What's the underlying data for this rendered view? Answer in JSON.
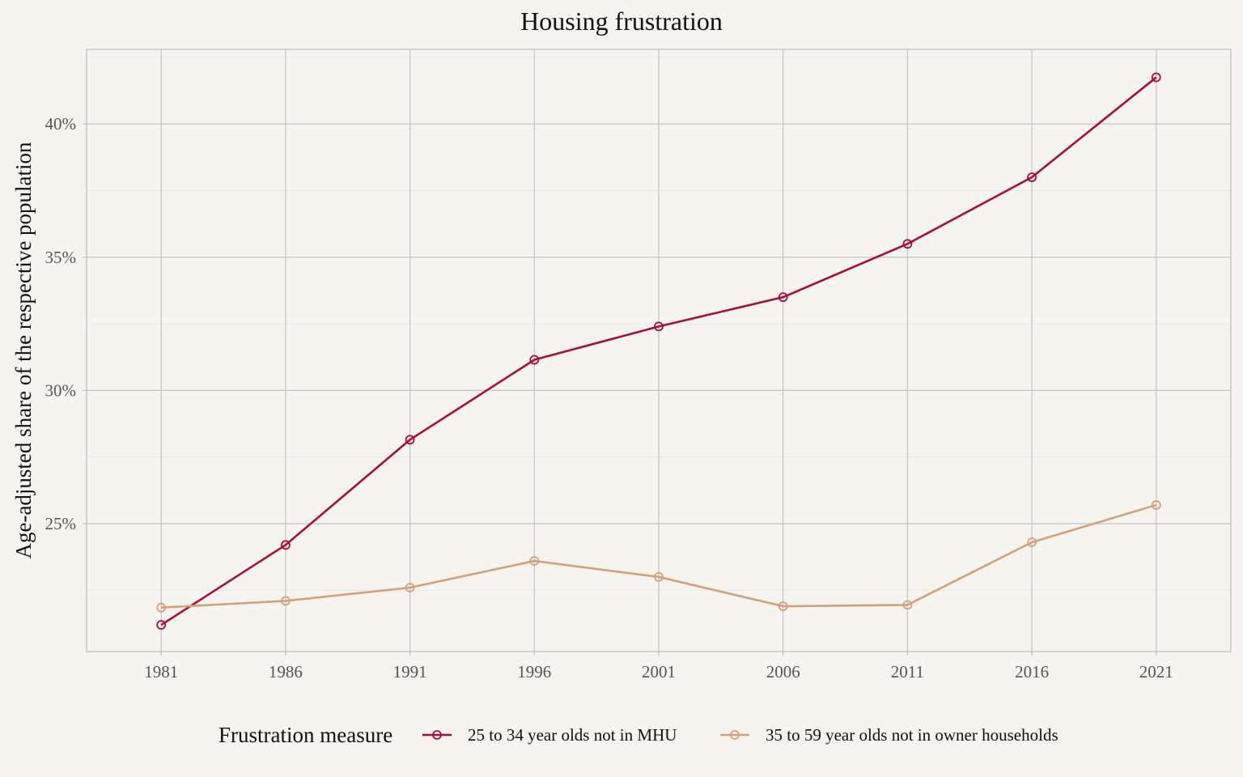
{
  "chart_data": {
    "type": "line",
    "title": "Housing frustration",
    "xlabel": "",
    "ylabel": "Age-adjusted share of the respective population",
    "x": [
      1981,
      1986,
      1991,
      1996,
      2001,
      2006,
      2011,
      2016,
      2021
    ],
    "xlim": [
      1978,
      2024
    ],
    "ylim": [
      20.2,
      42.8
    ],
    "y_ticks": [
      25,
      30,
      35,
      40
    ],
    "y_tick_labels": [
      "25%",
      "30%",
      "35%",
      "40%"
    ],
    "x_tick_labels": [
      "1981",
      "1986",
      "1991",
      "1996",
      "2001",
      "2006",
      "2011",
      "2016",
      "2021"
    ],
    "grid": true,
    "legend": {
      "title": "Frustration measure",
      "position": "bottom"
    },
    "series": [
      {
        "name": "25 to 34 year olds not in MHU",
        "color": "#a50f3c",
        "values": [
          21.2,
          24.2,
          28.15,
          31.15,
          32.4,
          33.5,
          35.5,
          38.0,
          41.75
        ]
      },
      {
        "name": "35 to 59 year olds not in owner households",
        "color": "#d4a07a",
        "values": [
          21.85,
          22.1,
          22.6,
          23.6,
          23.0,
          21.9,
          21.95,
          24.3,
          25.7
        ]
      }
    ]
  }
}
